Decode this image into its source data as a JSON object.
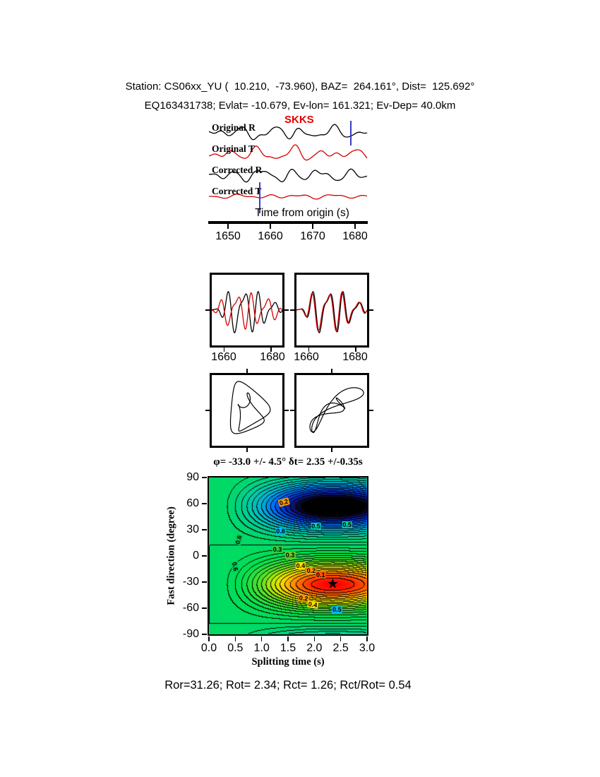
{
  "header": {
    "line1": "Station: CS06xx_YU (  10.210,  -73.960), BAZ=  264.161°, Dist=  125.692°",
    "line2": "EQ163431738; Evlat= -10.679, Ev-lon= 161.321; Ev-Dep= 40.0km"
  },
  "seismogram": {
    "phase_label": "SKKS",
    "phase_color": "#e60000",
    "marker_color": "#3a3ac8",
    "axis_label": "Time from origin (s)",
    "ticks": [
      "1650",
      "1660",
      "1670",
      "1680"
    ],
    "traces": [
      {
        "label": "Original R",
        "color": "#000000"
      },
      {
        "label": "Original T",
        "color": "#d40000"
      },
      {
        "label": "Corrected R",
        "color": "#000000"
      },
      {
        "label": "Corrected T",
        "color": "#d40000"
      }
    ]
  },
  "zoom_windows": {
    "panels": [
      {
        "ticks": [
          "1660",
          "1680"
        ]
      },
      {
        "ticks": [
          "1660",
          "1680"
        ]
      }
    ]
  },
  "misfit": {
    "title": "φ= -33.0 +/- 4.5°  δt= 2.35 +/-0.35s",
    "xlabel": "Splitting time (s)",
    "ylabel": "Fast direction (degree)",
    "xticks": [
      "0.0",
      "0.5",
      "1.0",
      "1.5",
      "2.0",
      "2.5",
      "3.0"
    ],
    "yticks": [
      "90",
      "60",
      "30",
      "0",
      "-30",
      "-60",
      "-90"
    ],
    "best_phi": -33.0,
    "phi_err": 4.5,
    "best_dt": 2.35,
    "dt_err": 0.35,
    "star_glyph": "★",
    "labels": [
      {
        "v": "0.6",
        "dt": 0.56,
        "phi": 19,
        "bg": "#00cc55",
        "rot": -75
      },
      {
        "v": "0.6",
        "dt": 0.5,
        "phi": -12,
        "bg": "#00cc55",
        "rot": 78
      },
      {
        "v": "0.2",
        "dt": 1.42,
        "phi": 62,
        "bg": "#ff9900",
        "rot": -15
      },
      {
        "v": "0.8",
        "dt": 1.36,
        "phi": 28,
        "bg": "#00bbee",
        "rot": 0
      },
      {
        "v": "0.5",
        "dt": 2.03,
        "phi": 34,
        "bg": "#00ccaa",
        "rot": 0
      },
      {
        "v": "0.3",
        "dt": 1.3,
        "phi": 7,
        "bg": "#33cc44",
        "rot": 0
      },
      {
        "v": "0.3",
        "dt": 1.54,
        "phi": 1,
        "bg": "#66cc22",
        "rot": 0
      },
      {
        "v": "0.4",
        "dt": 1.74,
        "phi": -11,
        "bg": "#ffdd00",
        "rot": 0
      },
      {
        "v": "0.2",
        "dt": 1.94,
        "phi": -17,
        "bg": "#ff9900",
        "rot": 0
      },
      {
        "v": "0.1",
        "dt": 2.12,
        "phi": -22,
        "bg": "#ff5500",
        "rot": 0
      },
      {
        "v": "0.2",
        "dt": 1.8,
        "phi": -49,
        "bg": "#ff9900",
        "rot": 8
      },
      {
        "v": "0.4",
        "dt": 1.97,
        "phi": -56,
        "bg": "#ffdd00",
        "rot": 8
      },
      {
        "v": "0.5",
        "dt": 2.43,
        "phi": -62,
        "bg": "#00bbee",
        "rot": 0
      },
      {
        "v": "0.5",
        "dt": 2.62,
        "phi": 36,
        "bg": "#00ccaa",
        "rot": 0
      }
    ]
  },
  "footer": {
    "text": "Ror=31.26; Rot= 2.34; Rct= 1.26; Rct/Rot= 0.54"
  },
  "chart_data": [
    {
      "type": "line",
      "panel": "seismograms",
      "phase": "SKKS",
      "xlabel": "Time from origin (s)",
      "x_ticks": [
        1650,
        1660,
        1670,
        1680
      ],
      "series": [
        {
          "name": "Original R",
          "color": "#000000"
        },
        {
          "name": "Original T",
          "color": "#d40000"
        },
        {
          "name": "Corrected R",
          "color": "#000000"
        },
        {
          "name": "Corrected T",
          "color": "#d40000"
        }
      ]
    },
    {
      "type": "line",
      "panel": "fast-slow-overlay",
      "panels": [
        {
          "x_ticks": [
            1660,
            1680
          ]
        },
        {
          "x_ticks": [
            1660,
            1680
          ]
        }
      ],
      "series": [
        {
          "name": "component-1",
          "color": "#000000"
        },
        {
          "name": "component-2",
          "color": "#d40000"
        }
      ]
    },
    {
      "type": "scatter",
      "panel": "particle-motion",
      "panels": [
        "before-correction",
        "after-correction"
      ]
    },
    {
      "type": "heatmap",
      "panel": "splitting-misfit",
      "title": "φ= -33.0 +/- 4.5° δt= 2.35 +/-0.35s",
      "xlabel": "Splitting time (s)",
      "ylabel": "Fast direction (degree)",
      "x_range": [
        0,
        3
      ],
      "y_range": [
        -90,
        90
      ],
      "x_ticks": [
        0.0,
        0.5,
        1.0,
        1.5,
        2.0,
        2.5,
        3.0
      ],
      "y_ticks": [
        90,
        60,
        30,
        0,
        -30,
        -60,
        -90
      ],
      "best_fit": {
        "fast_direction_deg": -33.0,
        "fast_direction_err_deg": 4.5,
        "delay_time_s": 2.35,
        "delay_time_err_s": 0.35
      },
      "contour_labels": [
        0.1,
        0.2,
        0.3,
        0.4,
        0.5,
        0.6,
        0.8
      ],
      "star": {
        "x": 2.35,
        "y": -33
      }
    },
    {
      "type": "table",
      "panel": "quality-metrics",
      "values": {
        "Ror": 31.26,
        "Rot": 2.34,
        "Rct": 1.26,
        "Rct/Rot": 0.54
      }
    }
  ],
  "synth": {
    "seis": [
      [
        [
          5.2,
          6.0,
          0.15
        ],
        [
          8.4,
          3.8,
          0.52
        ],
        [
          3.1,
          3.2,
          0.82
        ],
        [
          12.5,
          1.3,
          0.31
        ]
      ],
      [
        [
          4.9,
          6.2,
          0.68
        ],
        [
          7.6,
          4.2,
          0.05
        ],
        [
          3.3,
          2.8,
          0.4
        ],
        [
          11.8,
          1.6,
          0.74
        ]
      ],
      [
        [
          5.4,
          6.2,
          0.42
        ],
        [
          8.2,
          3.6,
          0.9
        ],
        [
          3.2,
          2.6,
          0.18
        ],
        [
          12.9,
          1.2,
          0.63
        ]
      ],
      [
        [
          5.0,
          2.0,
          0.33
        ],
        [
          8.8,
          1.3,
          0.77
        ],
        [
          3.4,
          1.0,
          0.52
        ]
      ]
    ],
    "zoom": {
      "black": [
        [
          4.6,
          24,
          0.18
        ],
        [
          7.2,
          13,
          0.55
        ],
        [
          2.8,
          7,
          0.85
        ]
      ],
      "shift": [
        0.1,
        0.012
      ],
      "scale": [
        0.85,
        0.95
      ]
    },
    "pm": [
      {
        "x": [
          [
            2,
            18,
            0.05
          ],
          [
            3,
            11,
            0.6
          ],
          [
            5,
            6,
            0.35
          ]
        ],
        "y": [
          [
            2,
            26,
            0.29
          ],
          [
            3,
            12,
            0.88
          ],
          [
            5,
            6,
            0.1
          ]
        ]
      },
      {
        "x": [
          [
            2,
            26,
            0.08
          ],
          [
            3,
            14,
            0.5
          ],
          [
            5,
            6,
            0.22
          ]
        ],
        "y": [
          [
            2,
            21,
            0.1
          ],
          [
            3,
            11,
            0.53
          ],
          [
            5,
            7,
            0.7
          ]
        ]
      }
    ]
  }
}
